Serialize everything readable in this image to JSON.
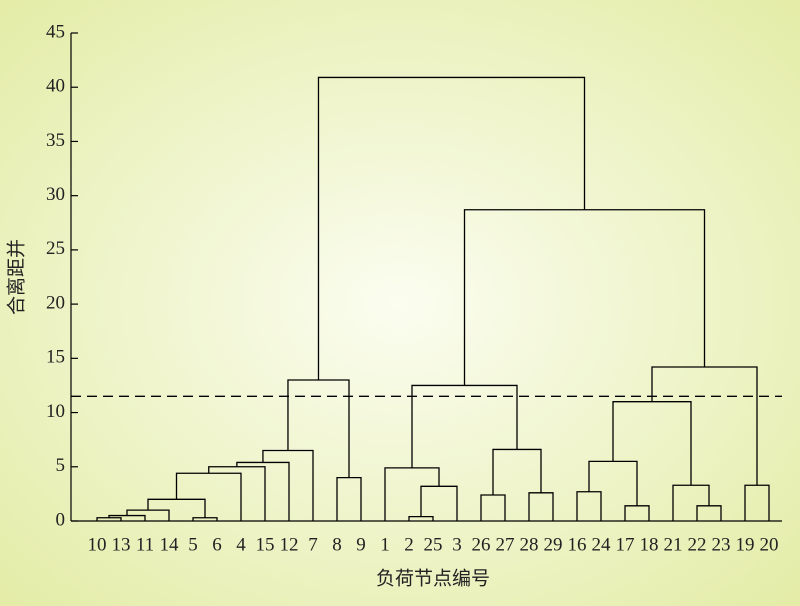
{
  "chart_data": {
    "type": "dendrogram",
    "y_label": "合离距并",
    "x_label": "负荷节点编号",
    "categories": [
      "10",
      "13",
      "11",
      "14",
      "5",
      "6",
      "4",
      "15",
      "12",
      "7",
      "8",
      "9",
      "1",
      "2",
      "25",
      "3",
      "26",
      "27",
      "28",
      "29",
      "16",
      "24",
      "17",
      "18",
      "21",
      "22",
      "23",
      "19",
      "20"
    ],
    "merges": [
      {
        "children": [
          0,
          1
        ],
        "height": 0.3
      },
      {
        "children": [
          29,
          2
        ],
        "height": 0.5
      },
      {
        "children": [
          30,
          3
        ],
        "height": 1.0
      },
      {
        "children": [
          4,
          5
        ],
        "height": 0.3
      },
      {
        "children": [
          31,
          32
        ],
        "height": 2.0
      },
      {
        "children": [
          33,
          6
        ],
        "height": 4.4
      },
      {
        "children": [
          34,
          7
        ],
        "height": 5.0
      },
      {
        "children": [
          35,
          8
        ],
        "height": 5.4
      },
      {
        "children": [
          36,
          9
        ],
        "height": 6.5
      },
      {
        "children": [
          10,
          11
        ],
        "height": 4.0
      },
      {
        "children": [
          37,
          38
        ],
        "height": 13.0
      },
      {
        "children": [
          13,
          14
        ],
        "height": 0.4
      },
      {
        "children": [
          40,
          15
        ],
        "height": 3.2
      },
      {
        "children": [
          12,
          41
        ],
        "height": 4.9
      },
      {
        "children": [
          16,
          17
        ],
        "height": 2.4
      },
      {
        "children": [
          18,
          19
        ],
        "height": 2.6
      },
      {
        "children": [
          43,
          44
        ],
        "height": 6.6
      },
      {
        "children": [
          42,
          45
        ],
        "height": 12.5
      },
      {
        "children": [
          20,
          21
        ],
        "height": 2.7
      },
      {
        "children": [
          22,
          23
        ],
        "height": 1.4
      },
      {
        "children": [
          47,
          48
        ],
        "height": 5.5
      },
      {
        "children": [
          25,
          26
        ],
        "height": 1.4
      },
      {
        "children": [
          24,
          50
        ],
        "height": 3.3
      },
      {
        "children": [
          49,
          51
        ],
        "height": 11.0
      },
      {
        "children": [
          27,
          28
        ],
        "height": 3.3
      },
      {
        "children": [
          52,
          53
        ],
        "height": 14.2
      },
      {
        "children": [
          46,
          54
        ],
        "height": 28.7
      },
      {
        "children": [
          39,
          55
        ],
        "height": 40.9
      }
    ],
    "threshold": 11.5,
    "color": "#000000",
    "ylim": [
      0,
      45
    ],
    "yticks": [
      0,
      5,
      10,
      15,
      20,
      25,
      30,
      35,
      40,
      45
    ]
  }
}
